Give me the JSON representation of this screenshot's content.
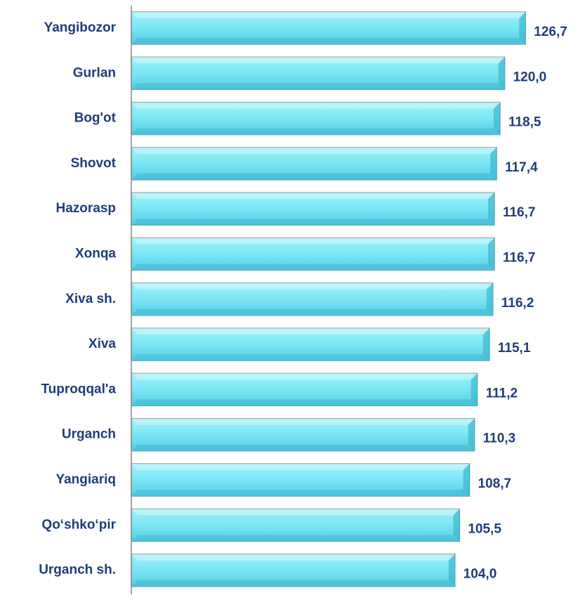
{
  "chart_data": {
    "type": "barh",
    "categories": [
      "Yangibozor",
      "Gurlan",
      "Bog'ot",
      "Shovot",
      "Hazorasp",
      "Xonqa",
      "Xiva sh.",
      "Xiva",
      "Tuproqqal'a",
      "Urganch",
      "Yangiariq",
      "Qo‘shko‘pir",
      "Urganch sh."
    ],
    "values": [
      126.7,
      120.0,
      118.5,
      117.4,
      116.7,
      116.7,
      116.2,
      115.1,
      111.2,
      110.3,
      108.7,
      105.5,
      104.0
    ],
    "value_labels": [
      "126,7",
      "120,0",
      "118,5",
      "117,4",
      "116,7",
      "116,7",
      "116,2",
      "115,1",
      "111,2",
      "110,3",
      "108,7",
      "105,5",
      "104,0"
    ],
    "color": "#7ae6f4"
  }
}
